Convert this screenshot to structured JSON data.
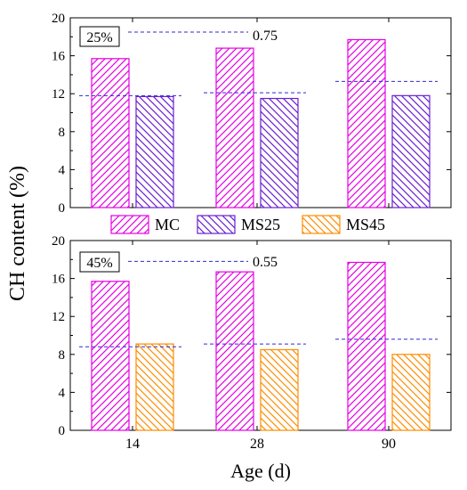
{
  "colors": {
    "MC": "#e600e6",
    "MS25": "#6a1fd1",
    "MS45": "#ff8c00",
    "dashed_line": "#2b2bd6",
    "axis": "#000000"
  },
  "chart_data": [
    {
      "type": "bar",
      "panel_label": "25%",
      "annotation": "0.75",
      "categories": [
        "14",
        "28",
        "90"
      ],
      "series": [
        {
          "name": "MC",
          "values": [
            15.7,
            16.8,
            17.7
          ]
        },
        {
          "name": "MS25",
          "values": [
            11.7,
            11.5,
            11.8
          ]
        }
      ],
      "reference_levels": [
        {
          "category": "14",
          "value": 11.8
        },
        {
          "category": "28",
          "value": 12.1
        },
        {
          "category": "90",
          "value": 13.3
        },
        {
          "category": "14",
          "value": 18.5,
          "span_to": "28"
        }
      ],
      "ylim": [
        0,
        20
      ],
      "yticks": [
        "0",
        "4",
        "8",
        "12",
        "16",
        "20"
      ],
      "xticks_visible": false
    },
    {
      "type": "bar",
      "panel_label": "45%",
      "annotation": "0.55",
      "categories": [
        "14",
        "28",
        "90"
      ],
      "series": [
        {
          "name": "MC",
          "values": [
            15.7,
            16.7,
            17.7
          ]
        },
        {
          "name": "MS45",
          "values": [
            9.1,
            8.5,
            8.0
          ]
        }
      ],
      "reference_levels": [
        {
          "category": "14",
          "value": 8.8
        },
        {
          "category": "28",
          "value": 9.1
        },
        {
          "category": "90",
          "value": 9.6
        },
        {
          "category": "14",
          "value": 17.8,
          "span_to": "28"
        }
      ],
      "ylim": [
        0,
        20
      ],
      "yticks": [
        "0",
        "4",
        "8",
        "12",
        "16",
        "20"
      ],
      "xticks_visible": true
    }
  ],
  "legend": {
    "entries": [
      "MC",
      "MS25",
      "MS45"
    ],
    "placement": "between-panels"
  },
  "axes": {
    "ylabel": "CH content (%)",
    "xlabel": "Age (d)",
    "xtick_labels": [
      "14",
      "28",
      "90"
    ]
  }
}
